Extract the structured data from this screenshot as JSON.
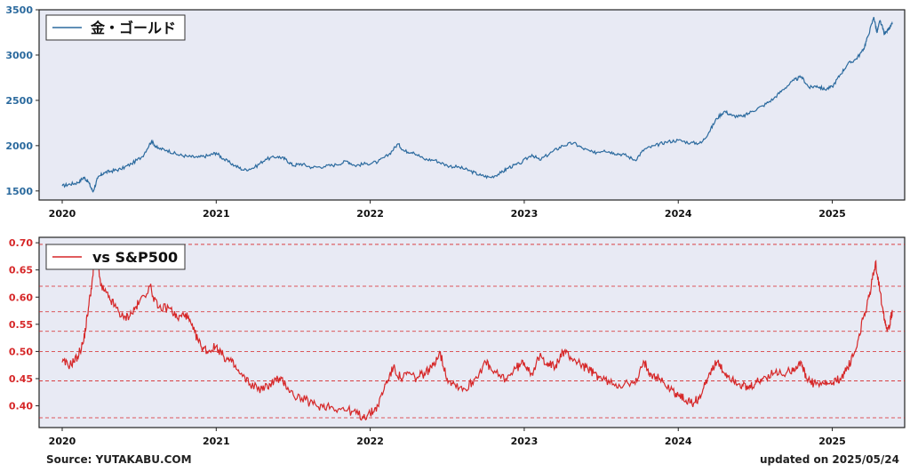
{
  "footer": {
    "source": "Source: YUTAKABU.COM",
    "updated": "updated on 2025/05/24"
  },
  "colors": {
    "gold_line": "#2b6a9e",
    "ratio_line": "#d62728",
    "panel_bg": "#e8eaf4",
    "gold_tick": "#2b6a9e",
    "ratio_tick": "#d62728"
  },
  "chart_data": [
    {
      "type": "line",
      "legend": [
        "金・ゴールド"
      ],
      "legend_position": "top-left",
      "ylim": [
        1400,
        3500
      ],
      "yticks": [
        1500,
        2000,
        2500,
        3000,
        3500
      ],
      "xlim": [
        2019.85,
        2025.47
      ],
      "xticks": [
        "2020",
        "2021",
        "2022",
        "2023",
        "2024",
        "2025"
      ],
      "grid": false,
      "series": [
        {
          "name": "金・ゴールド",
          "points": [
            [
              2020.0,
              1555
            ],
            [
              2020.05,
              1575
            ],
            [
              2020.1,
              1590
            ],
            [
              2020.14,
              1650
            ],
            [
              2020.17,
              1600
            ],
            [
              2020.2,
              1490
            ],
            [
              2020.23,
              1640
            ],
            [
              2020.27,
              1700
            ],
            [
              2020.32,
              1720
            ],
            [
              2020.38,
              1740
            ],
            [
              2020.45,
              1800
            ],
            [
              2020.52,
              1880
            ],
            [
              2020.58,
              2050
            ],
            [
              2020.62,
              1970
            ],
            [
              2020.68,
              1950
            ],
            [
              2020.75,
              1900
            ],
            [
              2020.82,
              1880
            ],
            [
              2020.88,
              1870
            ],
            [
              2020.95,
              1890
            ],
            [
              2021.0,
              1920
            ],
            [
              2021.05,
              1850
            ],
            [
              2021.12,
              1780
            ],
            [
              2021.18,
              1730
            ],
            [
              2021.25,
              1760
            ],
            [
              2021.32,
              1850
            ],
            [
              2021.4,
              1880
            ],
            [
              2021.45,
              1850
            ],
            [
              2021.5,
              1780
            ],
            [
              2021.55,
              1800
            ],
            [
              2021.62,
              1760
            ],
            [
              2021.7,
              1770
            ],
            [
              2021.78,
              1790
            ],
            [
              2021.85,
              1830
            ],
            [
              2021.9,
              1780
            ],
            [
              2021.97,
              1800
            ],
            [
              2022.05,
              1820
            ],
            [
              2022.12,
              1900
            ],
            [
              2022.18,
              2020
            ],
            [
              2022.22,
              1940
            ],
            [
              2022.28,
              1930
            ],
            [
              2022.35,
              1850
            ],
            [
              2022.42,
              1840
            ],
            [
              2022.5,
              1780
            ],
            [
              2022.58,
              1760
            ],
            [
              2022.65,
              1720
            ],
            [
              2022.72,
              1670
            ],
            [
              2022.78,
              1650
            ],
            [
              2022.85,
              1700
            ],
            [
              2022.9,
              1760
            ],
            [
              2022.97,
              1800
            ],
            [
              2023.05,
              1900
            ],
            [
              2023.1,
              1840
            ],
            [
              2023.18,
              1930
            ],
            [
              2023.25,
              2000
            ],
            [
              2023.32,
              2030
            ],
            [
              2023.38,
              1970
            ],
            [
              2023.45,
              1920
            ],
            [
              2023.52,
              1950
            ],
            [
              2023.58,
              1920
            ],
            [
              2023.65,
              1900
            ],
            [
              2023.72,
              1840
            ],
            [
              2023.78,
              1960
            ],
            [
              2023.85,
              2000
            ],
            [
              2023.92,
              2040
            ],
            [
              2024.0,
              2060
            ],
            [
              2024.08,
              2030
            ],
            [
              2024.15,
              2030
            ],
            [
              2024.2,
              2150
            ],
            [
              2024.25,
              2300
            ],
            [
              2024.3,
              2380
            ],
            [
              2024.35,
              2330
            ],
            [
              2024.42,
              2320
            ],
            [
              2024.48,
              2380
            ],
            [
              2024.55,
              2440
            ],
            [
              2024.62,
              2520
            ],
            [
              2024.68,
              2620
            ],
            [
              2024.75,
              2720
            ],
            [
              2024.8,
              2760
            ],
            [
              2024.85,
              2640
            ],
            [
              2024.9,
              2660
            ],
            [
              2024.95,
              2620
            ],
            [
              2025.0,
              2650
            ],
            [
              2025.05,
              2780
            ],
            [
              2025.1,
              2900
            ],
            [
              2025.15,
              2950
            ],
            [
              2025.2,
              3050
            ],
            [
              2025.23,
              3200
            ],
            [
              2025.27,
              3420
            ],
            [
              2025.29,
              3250
            ],
            [
              2025.31,
              3380
            ],
            [
              2025.34,
              3230
            ],
            [
              2025.37,
              3300
            ],
            [
              2025.39,
              3340
            ]
          ]
        }
      ]
    },
    {
      "type": "line",
      "legend": [
        "vs S&P500"
      ],
      "legend_position": "top-left",
      "ylim": [
        0.36,
        0.71
      ],
      "yticks": [
        0.4,
        0.45,
        0.5,
        0.55,
        0.6,
        0.65,
        0.7
      ],
      "ytick_labels": [
        "0.40",
        "0.45",
        "0.50",
        "0.55",
        "0.60",
        "0.65",
        "0.70"
      ],
      "xlim": [
        2019.85,
        2025.47
      ],
      "xticks": [
        "2020",
        "2021",
        "2022",
        "2023",
        "2024",
        "2025"
      ],
      "reference_lines": [
        0.378,
        0.446,
        0.5,
        0.537,
        0.573,
        0.62,
        0.697
      ],
      "series": [
        {
          "name": "vs S&P500",
          "points": [
            [
              2020.0,
              0.48
            ],
            [
              2020.05,
              0.475
            ],
            [
              2020.1,
              0.49
            ],
            [
              2020.14,
              0.52
            ],
            [
              2020.17,
              0.58
            ],
            [
              2020.2,
              0.64
            ],
            [
              2020.22,
              0.695
            ],
            [
              2020.25,
              0.62
            ],
            [
              2020.3,
              0.6
            ],
            [
              2020.35,
              0.58
            ],
            [
              2020.4,
              0.56
            ],
            [
              2020.45,
              0.57
            ],
            [
              2020.5,
              0.59
            ],
            [
              2020.57,
              0.62
            ],
            [
              2020.62,
              0.58
            ],
            [
              2020.7,
              0.58
            ],
            [
              2020.75,
              0.56
            ],
            [
              2020.8,
              0.57
            ],
            [
              2020.85,
              0.54
            ],
            [
              2020.9,
              0.51
            ],
            [
              2020.95,
              0.5
            ],
            [
              2021.0,
              0.51
            ],
            [
              2021.05,
              0.49
            ],
            [
              2021.1,
              0.48
            ],
            [
              2021.15,
              0.46
            ],
            [
              2021.22,
              0.44
            ],
            [
              2021.3,
              0.43
            ],
            [
              2021.35,
              0.44
            ],
            [
              2021.4,
              0.45
            ],
            [
              2021.45,
              0.44
            ],
            [
              2021.5,
              0.42
            ],
            [
              2021.58,
              0.41
            ],
            [
              2021.65,
              0.4
            ],
            [
              2021.72,
              0.4
            ],
            [
              2021.8,
              0.395
            ],
            [
              2021.88,
              0.39
            ],
            [
              2021.95,
              0.38
            ],
            [
              2022.0,
              0.385
            ],
            [
              2022.05,
              0.4
            ],
            [
              2022.1,
              0.44
            ],
            [
              2022.15,
              0.47
            ],
            [
              2022.2,
              0.45
            ],
            [
              2022.25,
              0.46
            ],
            [
              2022.3,
              0.45
            ],
            [
              2022.35,
              0.46
            ],
            [
              2022.4,
              0.47
            ],
            [
              2022.45,
              0.5
            ],
            [
              2022.5,
              0.45
            ],
            [
              2022.55,
              0.44
            ],
            [
              2022.62,
              0.43
            ],
            [
              2022.68,
              0.45
            ],
            [
              2022.75,
              0.48
            ],
            [
              2022.8,
              0.46
            ],
            [
              2022.88,
              0.45
            ],
            [
              2022.95,
              0.47
            ],
            [
              2023.0,
              0.48
            ],
            [
              2023.05,
              0.46
            ],
            [
              2023.1,
              0.49
            ],
            [
              2023.15,
              0.48
            ],
            [
              2023.2,
              0.47
            ],
            [
              2023.25,
              0.5
            ],
            [
              2023.3,
              0.49
            ],
            [
              2023.35,
              0.48
            ],
            [
              2023.4,
              0.47
            ],
            [
              2023.45,
              0.46
            ],
            [
              2023.5,
              0.45
            ],
            [
              2023.58,
              0.44
            ],
            [
              2023.65,
              0.44
            ],
            [
              2023.72,
              0.44
            ],
            [
              2023.78,
              0.48
            ],
            [
              2023.82,
              0.46
            ],
            [
              2023.88,
              0.45
            ],
            [
              2023.95,
              0.43
            ],
            [
              2024.0,
              0.42
            ],
            [
              2024.05,
              0.41
            ],
            [
              2024.1,
              0.405
            ],
            [
              2024.15,
              0.42
            ],
            [
              2024.2,
              0.46
            ],
            [
              2024.25,
              0.48
            ],
            [
              2024.3,
              0.46
            ],
            [
              2024.35,
              0.45
            ],
            [
              2024.4,
              0.44
            ],
            [
              2024.45,
              0.43
            ],
            [
              2024.5,
              0.44
            ],
            [
              2024.55,
              0.45
            ],
            [
              2024.62,
              0.46
            ],
            [
              2024.7,
              0.46
            ],
            [
              2024.75,
              0.47
            ],
            [
              2024.8,
              0.48
            ],
            [
              2024.83,
              0.45
            ],
            [
              2024.88,
              0.44
            ],
            [
              2024.95,
              0.44
            ],
            [
              2025.0,
              0.44
            ],
            [
              2025.05,
              0.45
            ],
            [
              2025.1,
              0.47
            ],
            [
              2025.15,
              0.5
            ],
            [
              2025.2,
              0.56
            ],
            [
              2025.24,
              0.6
            ],
            [
              2025.28,
              0.665
            ],
            [
              2025.31,
              0.61
            ],
            [
              2025.34,
              0.56
            ],
            [
              2025.36,
              0.54
            ],
            [
              2025.38,
              0.56
            ],
            [
              2025.39,
              0.575
            ]
          ]
        }
      ]
    }
  ]
}
